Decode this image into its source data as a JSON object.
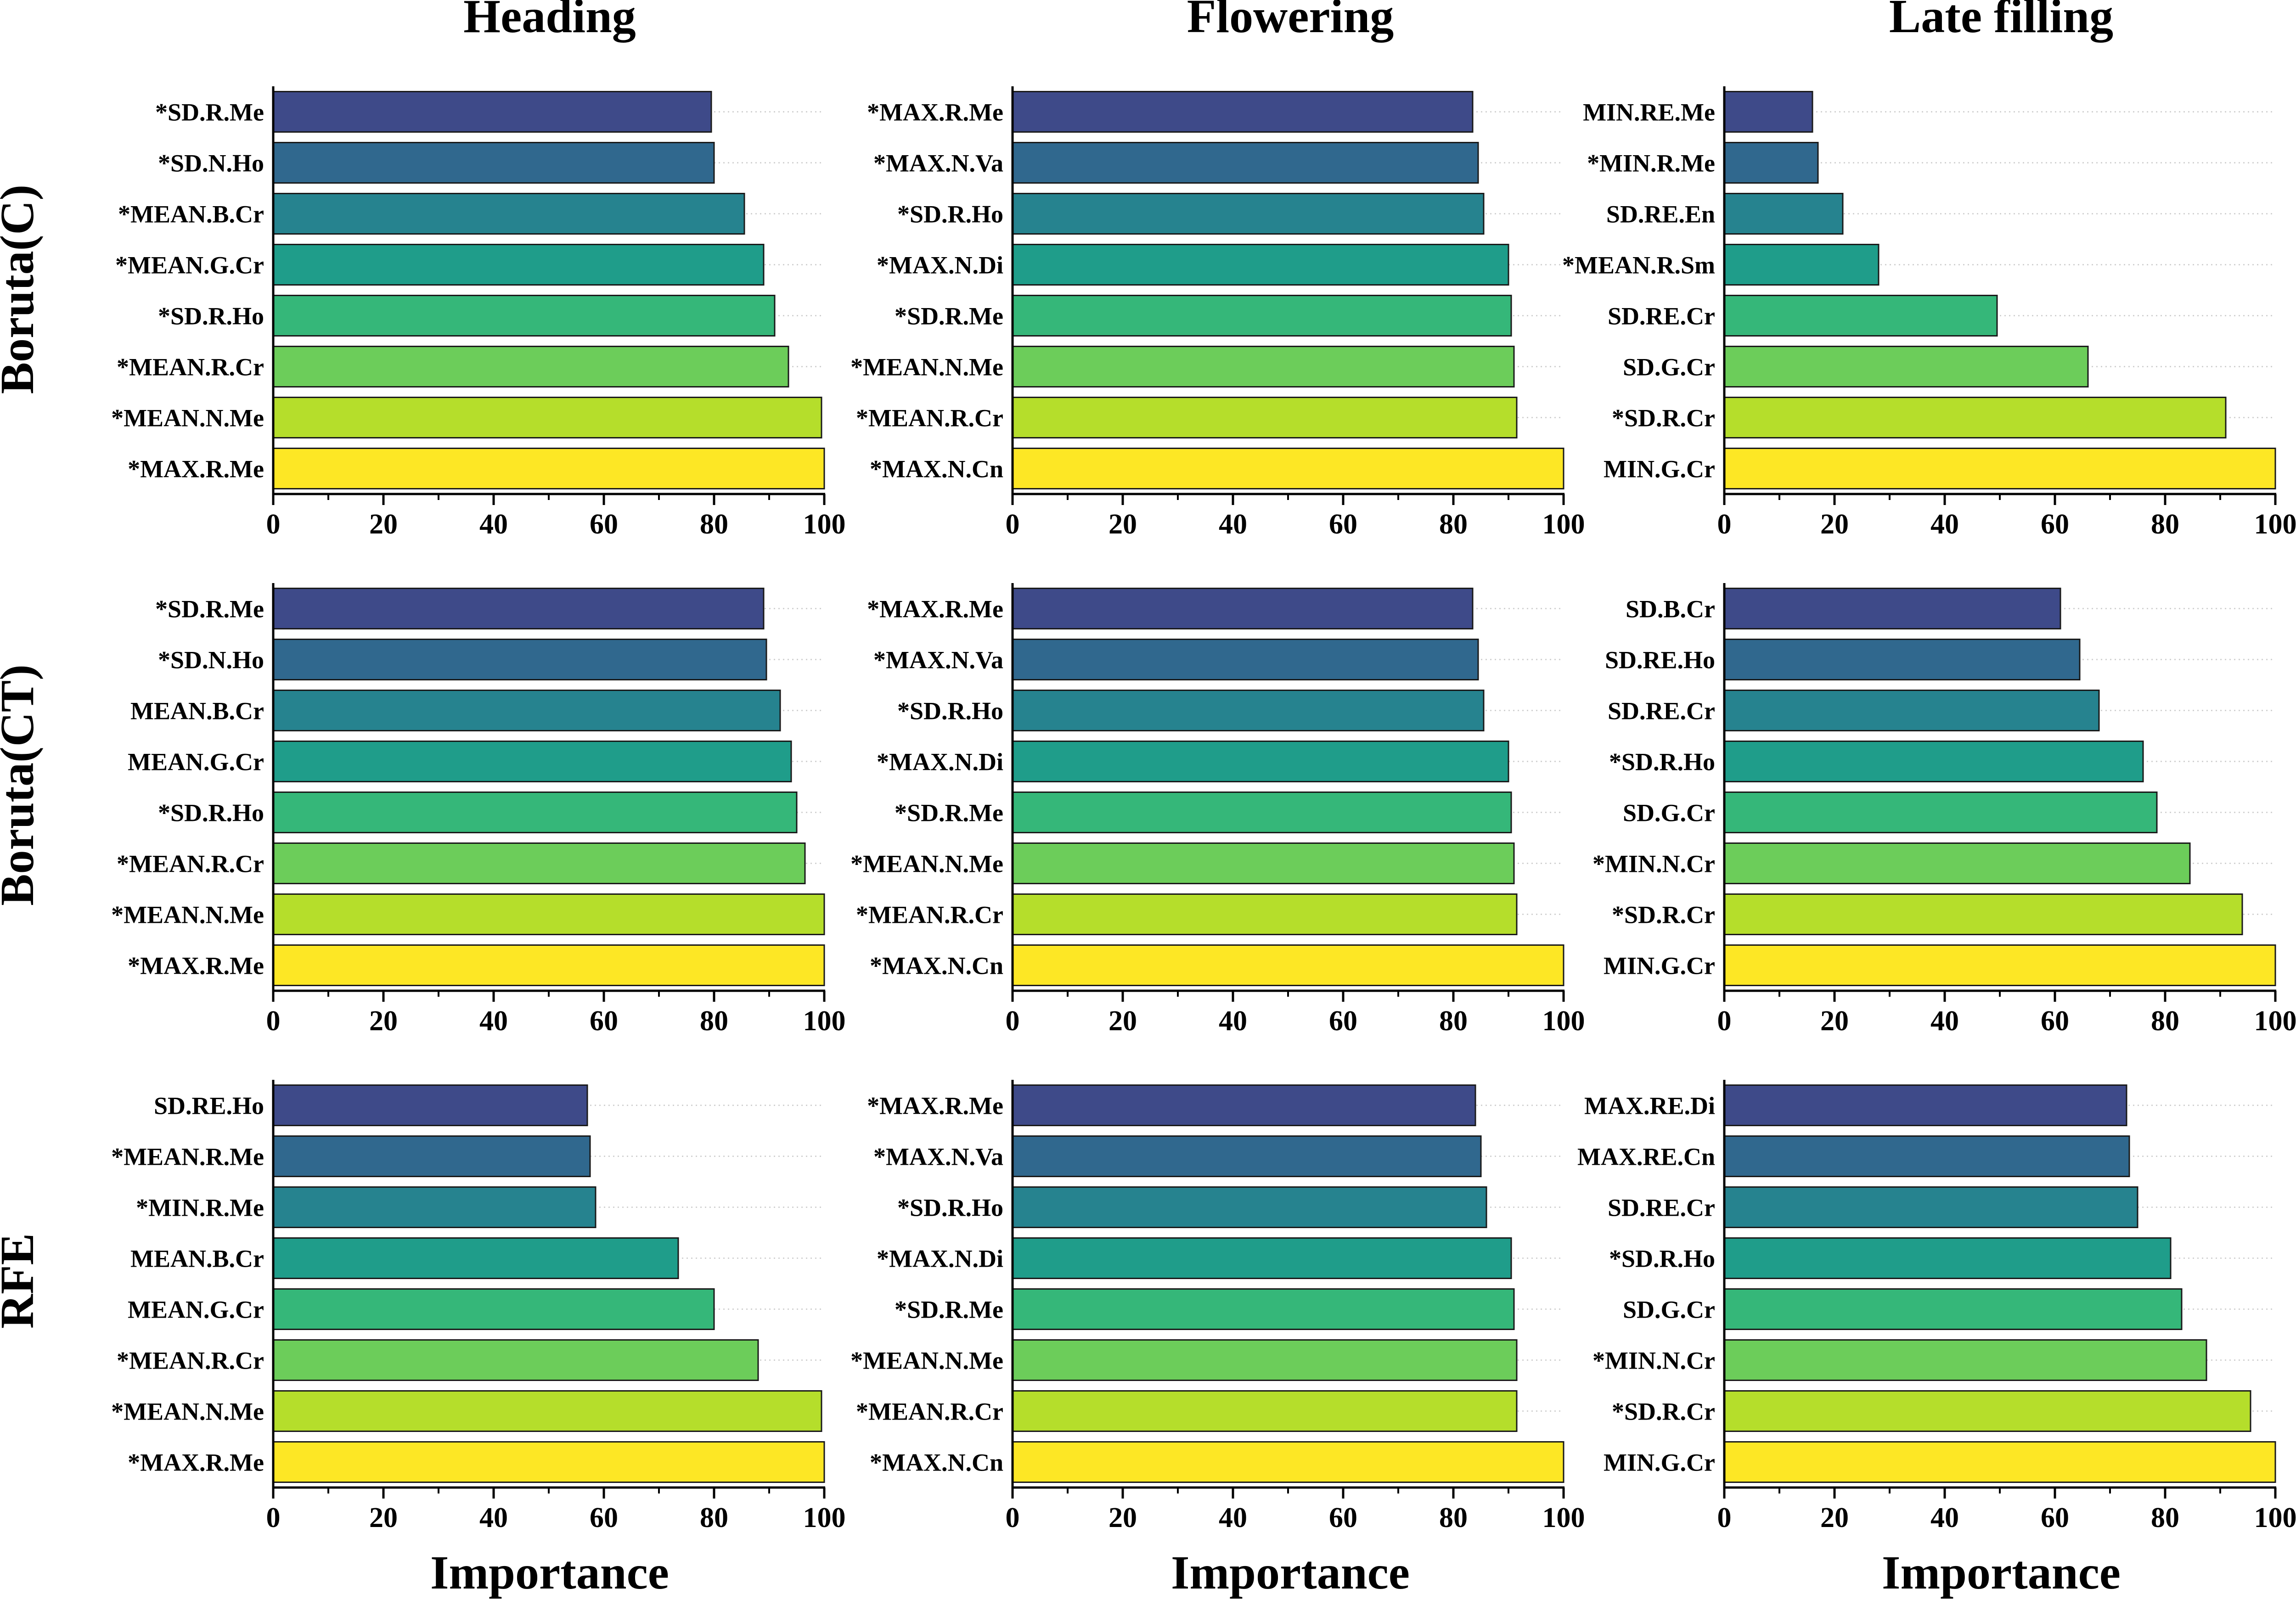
{
  "column_titles": [
    "Heading",
    "Flowering",
    "Late filling"
  ],
  "row_labels": [
    "Boruta(C)",
    "Boruta(CT)",
    "RFE"
  ],
  "xlabel": "Importance",
  "bar_colors": [
    "#3e4a89",
    "#30688e",
    "#26838f",
    "#1f9d8a",
    "#35b779",
    "#6ccd5a",
    "#b5de2b",
    "#fde725"
  ],
  "chart_data": [
    {
      "type": "bar",
      "orientation": "horizontal",
      "row": "Boruta(C)",
      "column": "Heading",
      "xlabel": "Importance",
      "xlim": [
        0,
        100
      ],
      "xticks": [
        0,
        20,
        40,
        60,
        80,
        100
      ],
      "categories": [
        "*SD.R.Me",
        "*SD.N.Ho",
        "*MEAN.B.Cr",
        "*MEAN.G.Cr",
        "*SD.R.Ho",
        "*MEAN.R.Cr",
        "*MEAN.N.Me",
        "*MAX.R.Me"
      ],
      "values": [
        79.5,
        80,
        85.5,
        89,
        91,
        93.5,
        99.5,
        100
      ]
    },
    {
      "type": "bar",
      "orientation": "horizontal",
      "row": "Boruta(C)",
      "column": "Flowering",
      "xlabel": "Importance",
      "xlim": [
        0,
        100
      ],
      "xticks": [
        0,
        20,
        40,
        60,
        80,
        100
      ],
      "categories": [
        "*MAX.R.Me",
        "*MAX.N.Va",
        "*SD.R.Ho",
        "*MAX.N.Di",
        "*SD.R.Me",
        "*MEAN.N.Me",
        "*MEAN.R.Cr",
        "*MAX.N.Cn"
      ],
      "values": [
        83.5,
        84.5,
        85.5,
        90,
        90.5,
        91,
        91.5,
        100
      ]
    },
    {
      "type": "bar",
      "orientation": "horizontal",
      "row": "Boruta(C)",
      "column": "Late filling",
      "xlabel": "Importance",
      "xlim": [
        0,
        100
      ],
      "xticks": [
        0,
        20,
        40,
        60,
        80,
        100
      ],
      "categories": [
        "MIN.RE.Me",
        "*MIN.R.Me",
        "SD.RE.En",
        "*MEAN.R.Sm",
        "SD.RE.Cr",
        "SD.G.Cr",
        "*SD.R.Cr",
        "MIN.G.Cr"
      ],
      "values": [
        16,
        17,
        21.5,
        28,
        49.5,
        66,
        91,
        100
      ]
    },
    {
      "type": "bar",
      "orientation": "horizontal",
      "row": "Boruta(CT)",
      "column": "Heading",
      "xlabel": "Importance",
      "xlim": [
        0,
        100
      ],
      "xticks": [
        0,
        20,
        40,
        60,
        80,
        100
      ],
      "categories": [
        "*SD.R.Me",
        "*SD.N.Ho",
        "MEAN.B.Cr",
        "MEAN.G.Cr",
        "*SD.R.Ho",
        "*MEAN.R.Cr",
        "*MEAN.N.Me",
        "*MAX.R.Me"
      ],
      "values": [
        89,
        89.5,
        92,
        94,
        95,
        96.5,
        100,
        100
      ]
    },
    {
      "type": "bar",
      "orientation": "horizontal",
      "row": "Boruta(CT)",
      "column": "Flowering",
      "xlabel": "Importance",
      "xlim": [
        0,
        100
      ],
      "xticks": [
        0,
        20,
        40,
        60,
        80,
        100
      ],
      "categories": [
        "*MAX.R.Me",
        "*MAX.N.Va",
        "*SD.R.Ho",
        "*MAX.N.Di",
        "*SD.R.Me",
        "*MEAN.N.Me",
        "*MEAN.R.Cr",
        "*MAX.N.Cn"
      ],
      "values": [
        83.5,
        84.5,
        85.5,
        90,
        90.5,
        91,
        91.5,
        100
      ]
    },
    {
      "type": "bar",
      "orientation": "horizontal",
      "row": "Boruta(CT)",
      "column": "Late filling",
      "xlabel": "Importance",
      "xlim": [
        0,
        100
      ],
      "xticks": [
        0,
        20,
        40,
        60,
        80,
        100
      ],
      "categories": [
        "SD.B.Cr",
        "SD.RE.Ho",
        "SD.RE.Cr",
        "*SD.R.Ho",
        "SD.G.Cr",
        "*MIN.N.Cr",
        "*SD.R.Cr",
        "MIN.G.Cr"
      ],
      "values": [
        61,
        64.5,
        68,
        76,
        78.5,
        84.5,
        94,
        100
      ]
    },
    {
      "type": "bar",
      "orientation": "horizontal",
      "row": "RFE",
      "column": "Heading",
      "xlabel": "Importance",
      "xlim": [
        0,
        100
      ],
      "xticks": [
        0,
        20,
        40,
        60,
        80,
        100
      ],
      "categories": [
        "SD.RE.Ho",
        "*MEAN.R.Me",
        "*MIN.R.Me",
        "MEAN.B.Cr",
        "MEAN.G.Cr",
        "*MEAN.R.Cr",
        "*MEAN.N.Me",
        "*MAX.R.Me"
      ],
      "values": [
        57,
        57.5,
        58.5,
        73.5,
        80,
        88,
        99.5,
        100
      ]
    },
    {
      "type": "bar",
      "orientation": "horizontal",
      "row": "RFE",
      "column": "Flowering",
      "xlabel": "Importance",
      "xlim": [
        0,
        100
      ],
      "xticks": [
        0,
        20,
        40,
        60,
        80,
        100
      ],
      "categories": [
        "*MAX.R.Me",
        "*MAX.N.Va",
        "*SD.R.Ho",
        "*MAX.N.Di",
        "*SD.R.Me",
        "*MEAN.N.Me",
        "*MEAN.R.Cr",
        "*MAX.N.Cn"
      ],
      "values": [
        84,
        85,
        86,
        90.5,
        91,
        91.5,
        91.5,
        100
      ]
    },
    {
      "type": "bar",
      "orientation": "horizontal",
      "row": "RFE",
      "column": "Late filling",
      "xlabel": "Importance",
      "xlim": [
        0,
        100
      ],
      "xticks": [
        0,
        20,
        40,
        60,
        80,
        100
      ],
      "categories": [
        "MAX.RE.Di",
        "MAX.RE.Cn",
        "SD.RE.Cr",
        "*SD.R.Ho",
        "SD.G.Cr",
        "*MIN.N.Cr",
        "*SD.R.Cr",
        "MIN.G.Cr"
      ],
      "values": [
        73,
        73.5,
        75,
        81,
        83,
        87.5,
        95.5,
        100
      ]
    }
  ]
}
